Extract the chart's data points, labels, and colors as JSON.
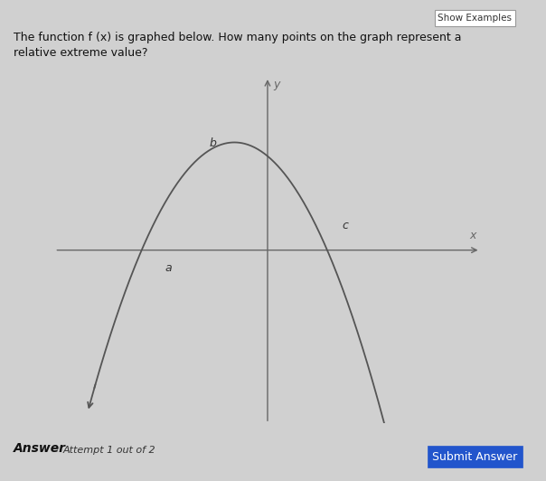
{
  "bg_color": "#d0d0d0",
  "graph_bg": "#e8e8e8",
  "title_text": "The function f (x) is graphed below. How many points on the graph represent a\nrelative extreme value?",
  "show_examples_text": "Show Examples",
  "answer_label": "Answer",
  "answer_attempt": "Attempt 1 out of 2",
  "submit_text": "Submit Answer",
  "axis_color": "#666666",
  "curve_color": "#555555",
  "label_a": "a",
  "label_b": "b",
  "label_c": "c",
  "label_x": "x",
  "label_y": "y",
  "x_axis_range": [
    -4.5,
    4.5
  ],
  "y_axis_range": [
    -4.5,
    4.5
  ],
  "peak_x": -0.7,
  "peak_y": 2.8,
  "curve_left_x": -3.8,
  "curve_left_y": -4.2,
  "curve_right_x": 3.2,
  "curve_right_y": -4.2,
  "point_a_x": -2.3,
  "point_a_y": 0.0,
  "point_b_x": -0.7,
  "point_b_y": 2.8,
  "point_c_x": 1.55,
  "point_c_y": 0.2
}
